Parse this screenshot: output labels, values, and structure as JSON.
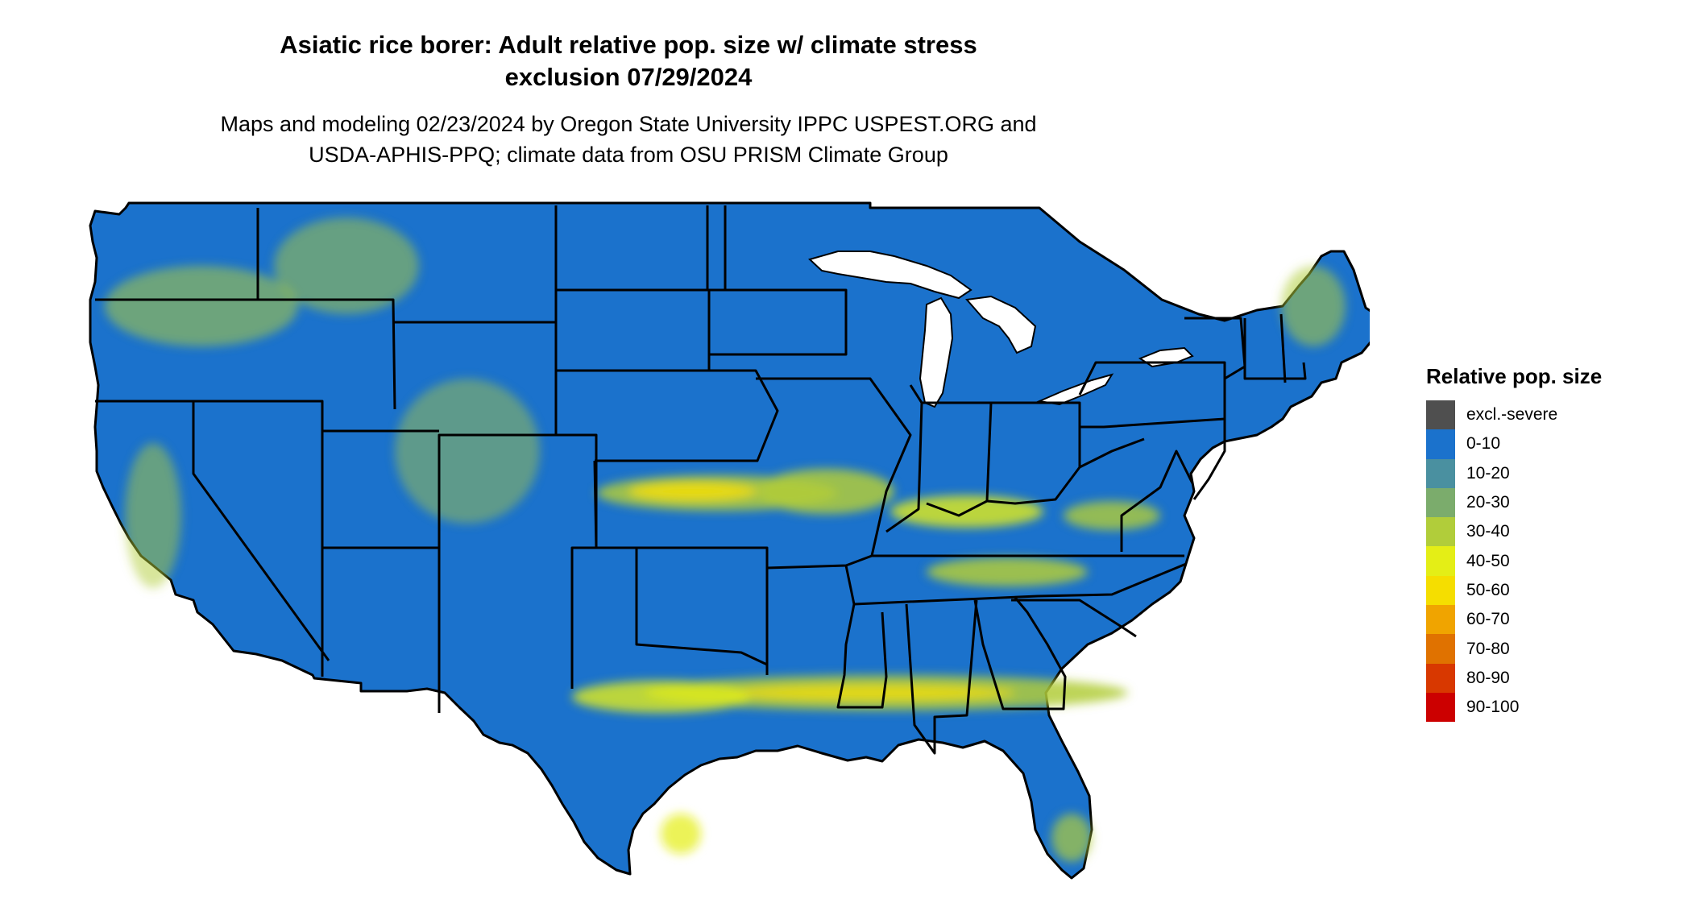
{
  "title_line1": "Asiatic rice borer: Adult relative pop. size w/ climate stress",
  "title_line2": "exclusion 07/29/2024",
  "subtitle_line1": "Maps and modeling 02/23/2024 by Oregon State University IPPC USPEST.ORG and",
  "subtitle_line2": "USDA-APHIS-PPQ; climate data from OSU PRISM Climate Group",
  "map": {
    "region": "Contiguous United States",
    "base_color": "#1b72cc",
    "border_color": "#000000",
    "water_color": "#ffffff"
  },
  "legend": {
    "title": "Relative pop. size",
    "items": [
      {
        "label": "excl.-severe",
        "color": "#4f4f4f"
      },
      {
        "label": "0-10",
        "color": "#1b72cc"
      },
      {
        "label": "10-20",
        "color": "#4a90a0"
      },
      {
        "label": "20-30",
        "color": "#7bac6c"
      },
      {
        "label": "30-40",
        "color": "#b1cd3a"
      },
      {
        "label": "40-50",
        "color": "#e4ee16"
      },
      {
        "label": "50-60",
        "color": "#f5de00"
      },
      {
        "label": "60-70",
        "color": "#f0a400"
      },
      {
        "label": "70-80",
        "color": "#e07200"
      },
      {
        "label": "80-90",
        "color": "#d83800"
      },
      {
        "label": "90-100",
        "color": "#cc0000"
      }
    ]
  }
}
